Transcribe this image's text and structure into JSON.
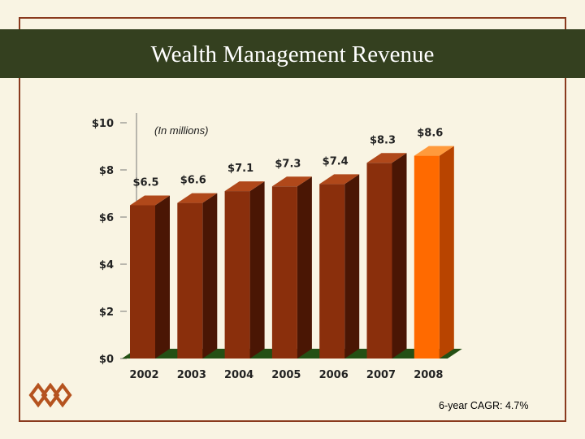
{
  "slide": {
    "title": "Wealth Management Revenue",
    "unit_note": "(In millions)",
    "footnote": "6-year CAGR: 4.7%",
    "logo_icon": "interlocking-chain-logo-icon"
  },
  "colors": {
    "title_band": "#34401f",
    "bar_default": "#8a2f0c",
    "bar_highlight": "#ff6a00",
    "floor": "#245014",
    "frame": "#8a3a1e",
    "logo": "#b5531f"
  },
  "chart_data": {
    "type": "bar",
    "categories": [
      "2002",
      "2003",
      "2004",
      "2005",
      "2006",
      "2007",
      "2008"
    ],
    "values": [
      6.5,
      6.6,
      7.1,
      7.3,
      7.4,
      8.3,
      8.6
    ],
    "data_labels": [
      "$6.5",
      "$6.6",
      "$7.1",
      "$7.3",
      "$7.4",
      "$8.3",
      "$8.6"
    ],
    "highlight_index": 6,
    "ylim": [
      0,
      10
    ],
    "yticks": [
      0,
      2,
      4,
      6,
      8,
      10
    ],
    "ytick_labels": [
      "$0",
      "$2",
      "$4",
      "$6",
      "$8",
      "$10"
    ],
    "grid": false,
    "legend": "none",
    "style": "3d"
  }
}
